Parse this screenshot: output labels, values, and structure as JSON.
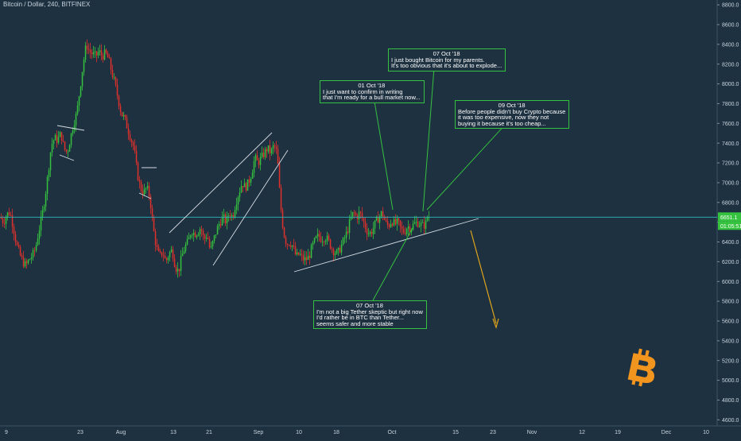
{
  "header": {
    "title": "Bitcoin / Dollar, 240, BITFINEX"
  },
  "price_badges": {
    "last": "6651.1",
    "countdown": "01:05:51"
  },
  "colors": {
    "background": "#1e3140",
    "up": "#35c23f",
    "down": "#e0312b",
    "current_price_line": "#2fb8c0",
    "trendlines": "#d6dde3",
    "annotation_lines": "#35c23f",
    "forecast_arrow": "#e0a41a",
    "logo": "#f2951f"
  },
  "annotations": [
    {
      "date": "01 Oct '18",
      "lines": [
        "I just want to confirm in writing",
        "that I'm ready for a bull market now..."
      ]
    },
    {
      "date": "07 Oct '18",
      "lines": [
        "I just bought Bitcoin for my parents.",
        "It's too obvious that it's about to explode..."
      ]
    },
    {
      "date": "09 Oct '18",
      "lines": [
        "Before people didn't buy Crypto because",
        "it was too expensive, now they not",
        "buying it because it's too cheap..."
      ]
    },
    {
      "date": "07 Oct '18",
      "lines": [
        "I'm not a big Tether skeptic but right now",
        "I'd rather be in BTC than Tether...",
        "seems safer and more stable"
      ]
    }
  ],
  "logo": {
    "icon": "bitcoin-logo-icon"
  },
  "chart_data": {
    "type": "candlestick",
    "title": "Bitcoin / Dollar, 240, BITFINEX",
    "y_axis": {
      "ticks": [
        4600,
        4800,
        5000,
        5200,
        5400,
        5600,
        5800,
        6000,
        6200,
        6400,
        6600,
        6800,
        7000,
        7200,
        7400,
        7600,
        7800,
        8000,
        8200,
        8400,
        8600,
        8800
      ],
      "tick_labels": [
        "4600.0",
        "4800.0",
        "5000.0",
        "5200.0",
        "5400.0",
        "5600.0",
        "5800.0",
        "6000.0",
        "6200.0",
        "6400.0",
        "6600.0",
        "6800.0",
        "7000.0",
        "7200.0",
        "7400.0",
        "7600.0",
        "7800.0",
        "8000.0",
        "8200.0",
        "8400.0",
        "8600.0",
        "8800.0"
      ],
      "range": [
        4550,
        8850
      ]
    },
    "x_axis": {
      "tick_labels": [
        "9",
        "23",
        "Aug",
        "13",
        "21",
        "Sep",
        "10",
        "18",
        "Oct",
        "15",
        "23",
        "Nov",
        "12",
        "19",
        "Dec",
        "10"
      ]
    },
    "current_price": 6651.1,
    "price_path": [
      [
        0,
        6650
      ],
      [
        4,
        6600
      ],
      [
        8,
        6680
      ],
      [
        12,
        6700
      ],
      [
        16,
        6560
      ],
      [
        20,
        6380
      ],
      [
        24,
        6280
      ],
      [
        28,
        6200
      ],
      [
        32,
        6160
      ],
      [
        36,
        6220
      ],
      [
        40,
        6260
      ],
      [
        44,
        6330
      ],
      [
        48,
        6500
      ],
      [
        52,
        6650
      ],
      [
        56,
        6850
      ],
      [
        60,
        7100
      ],
      [
        64,
        7380
      ],
      [
        68,
        7450
      ],
      [
        72,
        7430
      ],
      [
        76,
        7500
      ],
      [
        80,
        7350
      ],
      [
        84,
        7300
      ],
      [
        88,
        7450
      ],
      [
        92,
        7600
      ],
      [
        96,
        7700
      ],
      [
        100,
        7950
      ],
      [
        104,
        8200
      ],
      [
        108,
        8400
      ],
      [
        112,
        8330
      ],
      [
        116,
        8300
      ],
      [
        120,
        8280
      ],
      [
        124,
        8330
      ],
      [
        128,
        8280
      ],
      [
        132,
        8310
      ],
      [
        136,
        8250
      ],
      [
        140,
        8120
      ],
      [
        144,
        8000
      ],
      [
        148,
        7850
      ],
      [
        152,
        7700
      ],
      [
        156,
        7650
      ],
      [
        160,
        7550
      ],
      [
        164,
        7450
      ],
      [
        168,
        7350
      ],
      [
        172,
        7100
      ],
      [
        176,
        6950
      ],
      [
        180,
        6900
      ],
      [
        184,
        6950
      ],
      [
        188,
        6850
      ],
      [
        192,
        6550
      ],
      [
        196,
        6350
      ],
      [
        200,
        6250
      ],
      [
        204,
        6300
      ],
      [
        208,
        6200
      ],
      [
        212,
        6280
      ],
      [
        216,
        6320
      ],
      [
        220,
        6150
      ],
      [
        224,
        6100
      ],
      [
        228,
        6250
      ],
      [
        232,
        6350
      ],
      [
        236,
        6400
      ],
      [
        240,
        6520
      ],
      [
        244,
        6480
      ],
      [
        248,
        6500
      ],
      [
        252,
        6550
      ],
      [
        256,
        6420
      ],
      [
        260,
        6480
      ],
      [
        264,
        6300
      ],
      [
        268,
        6420
      ],
      [
        272,
        6520
      ],
      [
        276,
        6600
      ],
      [
        280,
        6650
      ],
      [
        284,
        6600
      ],
      [
        288,
        6700
      ],
      [
        292,
        6650
      ],
      [
        296,
        6800
      ],
      [
        300,
        6900
      ],
      [
        304,
        7000
      ],
      [
        308,
        6950
      ],
      [
        312,
        7000
      ],
      [
        316,
        7100
      ],
      [
        320,
        7250
      ],
      [
        324,
        7200
      ],
      [
        328,
        7250
      ],
      [
        332,
        7300
      ],
      [
        336,
        7350
      ],
      [
        340,
        7300
      ],
      [
        344,
        7380
      ],
      [
        348,
        7300
      ],
      [
        352,
        6800
      ],
      [
        356,
        6500
      ],
      [
        360,
        6380
      ],
      [
        364,
        6400
      ],
      [
        368,
        6350
      ],
      [
        372,
        6250
      ],
      [
        376,
        6280
      ],
      [
        380,
        6230
      ],
      [
        384,
        6220
      ],
      [
        388,
        6250
      ],
      [
        392,
        6350
      ],
      [
        396,
        6420
      ],
      [
        400,
        6460
      ],
      [
        404,
        6430
      ],
      [
        408,
        6450
      ],
      [
        412,
        6420
      ],
      [
        416,
        6350
      ],
      [
        420,
        6300
      ],
      [
        424,
        6280
      ],
      [
        428,
        6350
      ],
      [
        432,
        6420
      ],
      [
        436,
        6500
      ],
      [
        440,
        6620
      ],
      [
        444,
        6700
      ],
      [
        448,
        6650
      ],
      [
        452,
        6700
      ],
      [
        456,
        6620
      ],
      [
        460,
        6530
      ],
      [
        464,
        6480
      ],
      [
        468,
        6520
      ],
      [
        472,
        6600
      ],
      [
        476,
        6650
      ],
      [
        480,
        6700
      ],
      [
        484,
        6600
      ],
      [
        488,
        6560
      ],
      [
        492,
        6620
      ],
      [
        496,
        6580
      ],
      [
        500,
        6600
      ],
      [
        504,
        6520
      ],
      [
        508,
        6500
      ],
      [
        512,
        6560
      ],
      [
        516,
        6540
      ],
      [
        520,
        6580
      ],
      [
        524,
        6600
      ],
      [
        528,
        6580
      ],
      [
        532,
        6560
      ],
      [
        536,
        6600
      ],
      [
        540,
        6651
      ]
    ],
    "trendlines": 4,
    "forecast": "down arrow"
  }
}
